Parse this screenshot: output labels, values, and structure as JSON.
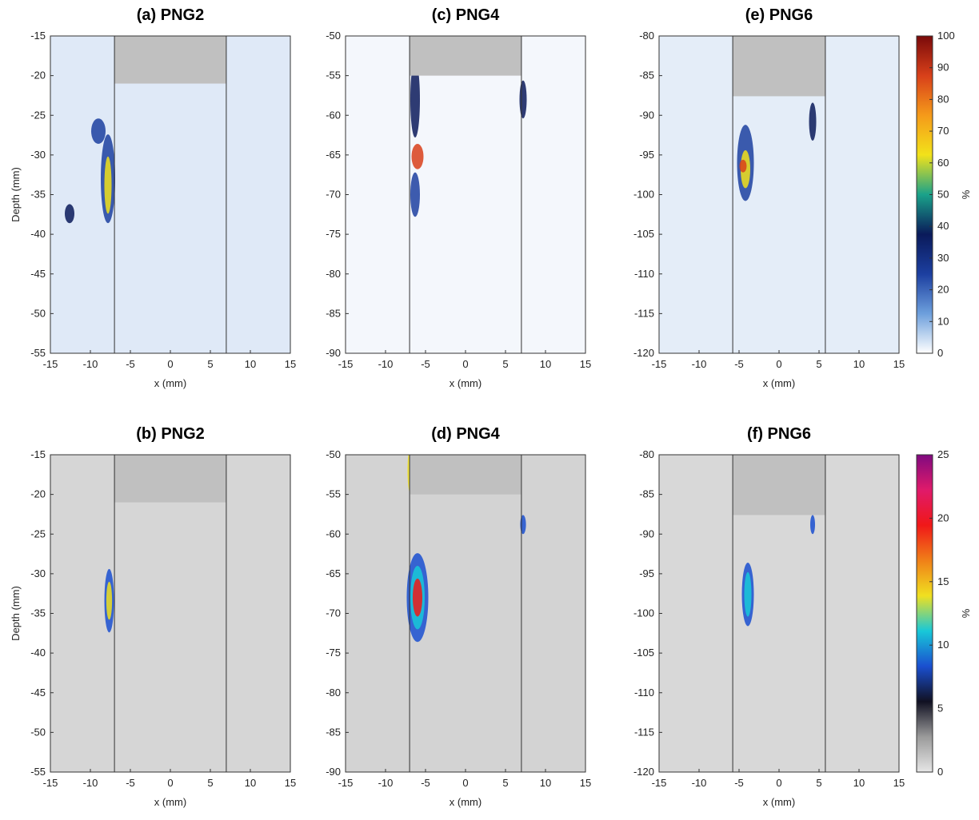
{
  "chart_data": [
    {
      "type": "heatmap",
      "title": "(a) PNG2",
      "xlabel": "x (mm)",
      "ylabel": "Depth (mm)",
      "xlim": [
        -15,
        15
      ],
      "xticks": [
        -15,
        -10,
        -5,
        0,
        5,
        10,
        15
      ],
      "ylim": [
        -55,
        -15
      ],
      "yticks": [
        -55,
        -50,
        -45,
        -40,
        -35,
        -30,
        -25,
        -20,
        -15
      ],
      "background": "#dfe9f7"
    },
    {
      "type": "heatmap",
      "title": "(c) PNG4",
      "xlabel": "x (mm)",
      "xlim": [
        -15,
        15
      ],
      "xticks": [
        -15,
        -10,
        -5,
        0,
        5,
        10,
        15
      ],
      "ylim": [
        -90,
        -50
      ],
      "yticks": [
        -90,
        -85,
        -80,
        -75,
        -70,
        -65,
        -60,
        -55,
        -50
      ],
      "background": "#f4f7fc"
    },
    {
      "type": "heatmap",
      "title": "(e) PNG6",
      "xlabel": "x (mm)",
      "xlim": [
        -15,
        15
      ],
      "xticks": [
        -15,
        -10,
        -5,
        0,
        5,
        10,
        15
      ],
      "ylim": [
        -120,
        -80
      ],
      "yticks": [
        -120,
        -115,
        -110,
        -105,
        -100,
        -95,
        -90,
        -85,
        -80
      ],
      "background": "#e4edf8",
      "colorbar": {
        "label": "%",
        "clim": [
          0,
          100
        ],
        "cticks": [
          0,
          10,
          20,
          30,
          40,
          50,
          60,
          70,
          80,
          90,
          100
        ],
        "colormap": [
          "#ffffff",
          "#6d9fdc",
          "#1c3fa0",
          "#0a1a5a",
          "#1aa28a",
          "#f2e21a",
          "#f59a1a",
          "#d8401a",
          "#7a0a0a"
        ]
      }
    },
    {
      "type": "heatmap",
      "title": "(b) PNG2",
      "xlabel": "x (mm)",
      "ylabel": "Depth (mm)",
      "xlim": [
        -15,
        15
      ],
      "xticks": [
        -15,
        -10,
        -5,
        0,
        5,
        10,
        15
      ],
      "ylim": [
        -55,
        -15
      ],
      "yticks": [
        -55,
        -50,
        -45,
        -40,
        -35,
        -30,
        -25,
        -20,
        -15
      ],
      "background": "#d6d6d6"
    },
    {
      "type": "heatmap",
      "title": "(d) PNG4",
      "xlabel": "x (mm)",
      "xlim": [
        -15,
        15
      ],
      "xticks": [
        -15,
        -10,
        -5,
        0,
        5,
        10,
        15
      ],
      "ylim": [
        -90,
        -50
      ],
      "yticks": [
        -90,
        -85,
        -80,
        -75,
        -70,
        -65,
        -60,
        -55,
        -50
      ],
      "background": "#d3d3d3"
    },
    {
      "type": "heatmap",
      "title": "(f) PNG6",
      "xlabel": "x (mm)",
      "xlim": [
        -15,
        15
      ],
      "xticks": [
        -15,
        -10,
        -5,
        0,
        5,
        10,
        15
      ],
      "ylim": [
        -120,
        -80
      ],
      "yticks": [
        -120,
        -115,
        -110,
        -105,
        -100,
        -95,
        -90,
        -85,
        -80
      ],
      "background": "#d8d8d8",
      "colorbar": {
        "label": "%",
        "clim": [
          0,
          25
        ],
        "cticks": [
          0,
          5,
          10,
          15,
          20,
          25
        ],
        "colormap": [
          "#e6e6e6",
          "#9a9a9a",
          "#111122",
          "#1a4fd0",
          "#18c8d8",
          "#f0e020",
          "#f08018",
          "#f01818",
          "#e01a6a",
          "#800a80"
        ]
      }
    }
  ]
}
